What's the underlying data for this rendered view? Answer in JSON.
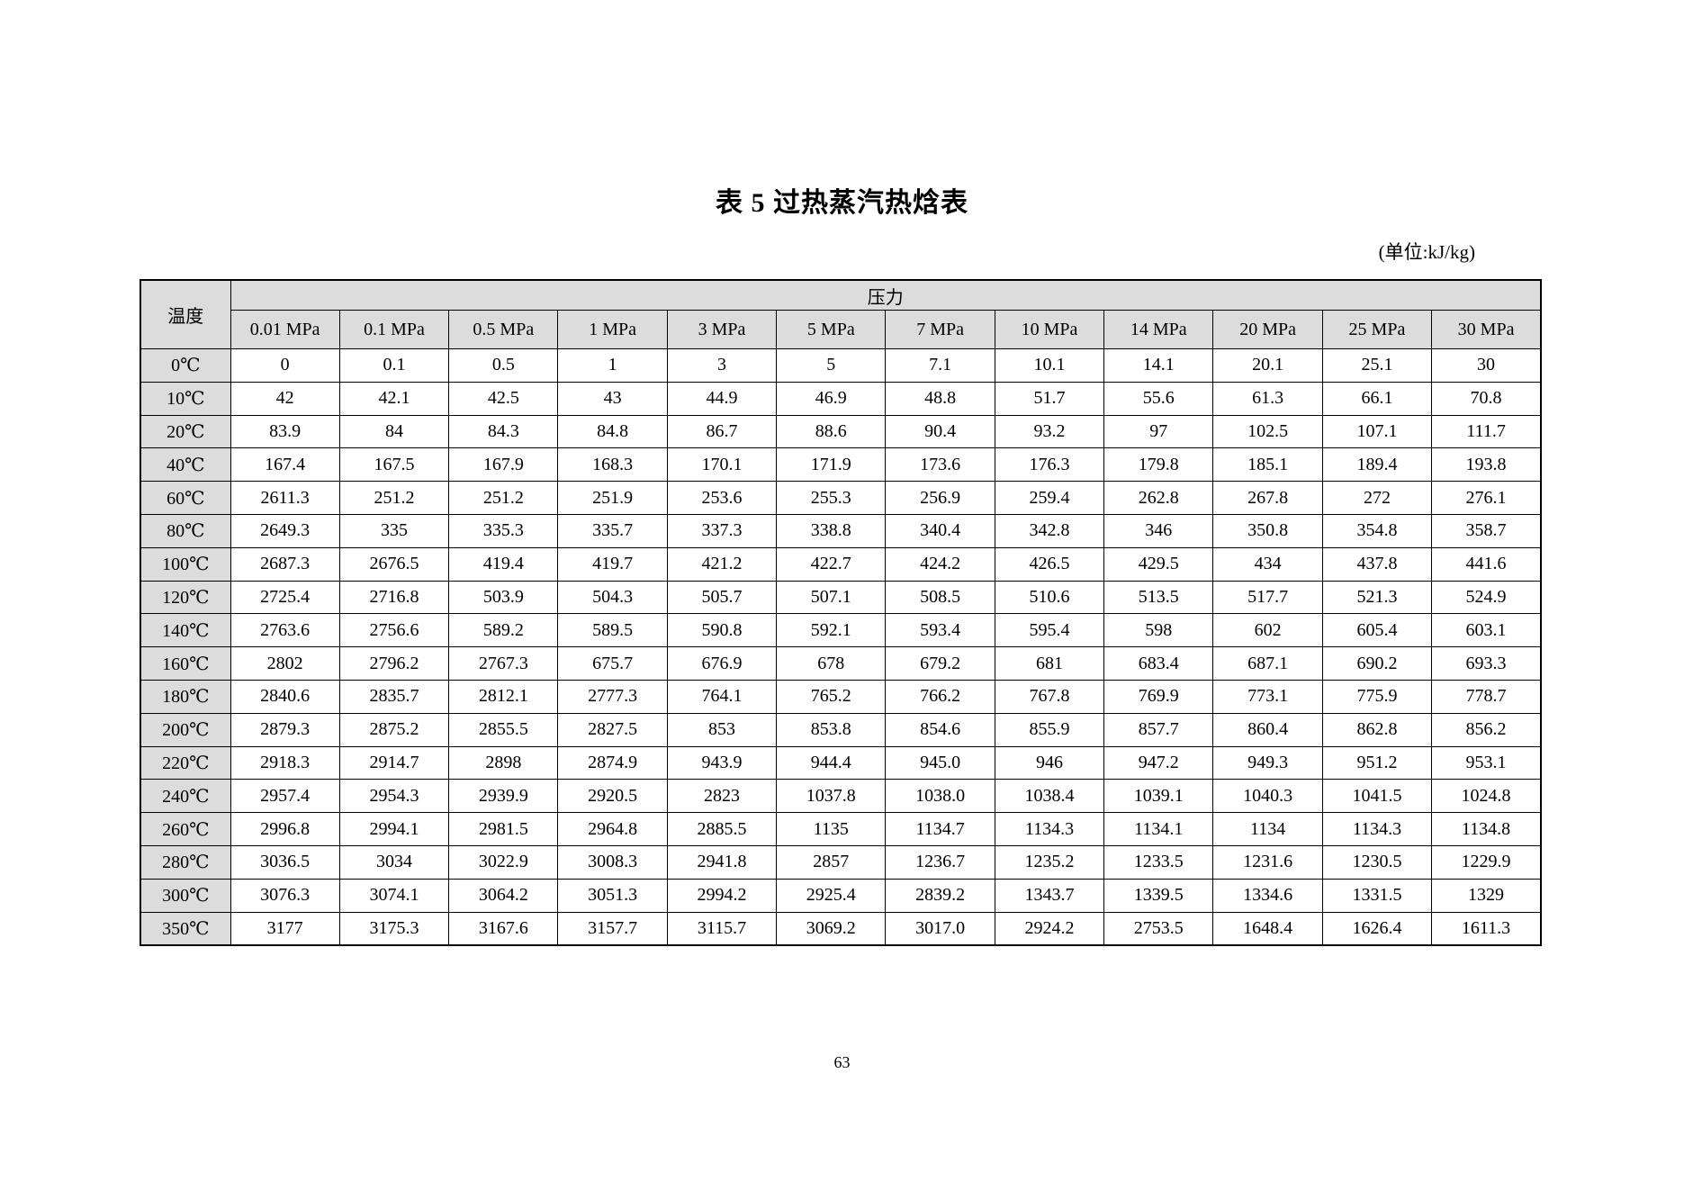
{
  "page": {
    "title": "表 5 过热蒸汽热焓表",
    "unit_note": "(单位:kJ/kg)",
    "page_number": "63"
  },
  "table": {
    "corner_header": "温度",
    "group_header": "压力",
    "header_bg_color": "#dcdcdc",
    "border_color": "#000000",
    "columns": [
      "0.01 MPa",
      "0.1 MPa",
      "0.5 MPa",
      "1 MPa",
      "3 MPa",
      "5 MPa",
      "7 MPa",
      "10 MPa",
      "14 MPa",
      "20 MPa",
      "25 MPa",
      "30 MPa"
    ],
    "rows": [
      {
        "temp": "0℃",
        "values": [
          "0",
          "0.1",
          "0.5",
          "1",
          "3",
          "5",
          "7.1",
          "10.1",
          "14.1",
          "20.1",
          "25.1",
          "30"
        ]
      },
      {
        "temp": "10℃",
        "values": [
          "42",
          "42.1",
          "42.5",
          "43",
          "44.9",
          "46.9",
          "48.8",
          "51.7",
          "55.6",
          "61.3",
          "66.1",
          "70.8"
        ]
      },
      {
        "temp": "20℃",
        "values": [
          "83.9",
          "84",
          "84.3",
          "84.8",
          "86.7",
          "88.6",
          "90.4",
          "93.2",
          "97",
          "102.5",
          "107.1",
          "111.7"
        ]
      },
      {
        "temp": "40℃",
        "values": [
          "167.4",
          "167.5",
          "167.9",
          "168.3",
          "170.1",
          "171.9",
          "173.6",
          "176.3",
          "179.8",
          "185.1",
          "189.4",
          "193.8"
        ]
      },
      {
        "temp": "60℃",
        "values": [
          "2611.3",
          "251.2",
          "251.2",
          "251.9",
          "253.6",
          "255.3",
          "256.9",
          "259.4",
          "262.8",
          "267.8",
          "272",
          "276.1"
        ]
      },
      {
        "temp": "80℃",
        "values": [
          "2649.3",
          "335",
          "335.3",
          "335.7",
          "337.3",
          "338.8",
          "340.4",
          "342.8",
          "346",
          "350.8",
          "354.8",
          "358.7"
        ]
      },
      {
        "temp": "100℃",
        "values": [
          "2687.3",
          "2676.5",
          "419.4",
          "419.7",
          "421.2",
          "422.7",
          "424.2",
          "426.5",
          "429.5",
          "434",
          "437.8",
          "441.6"
        ]
      },
      {
        "temp": "120℃",
        "values": [
          "2725.4",
          "2716.8",
          "503.9",
          "504.3",
          "505.7",
          "507.1",
          "508.5",
          "510.6",
          "513.5",
          "517.7",
          "521.3",
          "524.9"
        ]
      },
      {
        "temp": "140℃",
        "values": [
          "2763.6",
          "2756.6",
          "589.2",
          "589.5",
          "590.8",
          "592.1",
          "593.4",
          "595.4",
          "598",
          "602",
          "605.4",
          "603.1"
        ]
      },
      {
        "temp": "160℃",
        "values": [
          "2802",
          "2796.2",
          "2767.3",
          "675.7",
          "676.9",
          "678",
          "679.2",
          "681",
          "683.4",
          "687.1",
          "690.2",
          "693.3"
        ]
      },
      {
        "temp": "180℃",
        "values": [
          "2840.6",
          "2835.7",
          "2812.1",
          "2777.3",
          "764.1",
          "765.2",
          "766.2",
          "767.8",
          "769.9",
          "773.1",
          "775.9",
          "778.7"
        ]
      },
      {
        "temp": "200℃",
        "values": [
          "2879.3",
          "2875.2",
          "2855.5",
          "2827.5",
          "853",
          "853.8",
          "854.6",
          "855.9",
          "857.7",
          "860.4",
          "862.8",
          "856.2"
        ]
      },
      {
        "temp": "220℃",
        "values": [
          "2918.3",
          "2914.7",
          "2898",
          "2874.9",
          "943.9",
          "944.4",
          "945.0",
          "946",
          "947.2",
          "949.3",
          "951.2",
          "953.1"
        ]
      },
      {
        "temp": "240℃",
        "values": [
          "2957.4",
          "2954.3",
          "2939.9",
          "2920.5",
          "2823",
          "1037.8",
          "1038.0",
          "1038.4",
          "1039.1",
          "1040.3",
          "1041.5",
          "1024.8"
        ]
      },
      {
        "temp": "260℃",
        "values": [
          "2996.8",
          "2994.1",
          "2981.5",
          "2964.8",
          "2885.5",
          "1135",
          "1134.7",
          "1134.3",
          "1134.1",
          "1134",
          "1134.3",
          "1134.8"
        ]
      },
      {
        "temp": "280℃",
        "values": [
          "3036.5",
          "3034",
          "3022.9",
          "3008.3",
          "2941.8",
          "2857",
          "1236.7",
          "1235.2",
          "1233.5",
          "1231.6",
          "1230.5",
          "1229.9"
        ]
      },
      {
        "temp": "300℃",
        "values": [
          "3076.3",
          "3074.1",
          "3064.2",
          "3051.3",
          "2994.2",
          "2925.4",
          "2839.2",
          "1343.7",
          "1339.5",
          "1334.6",
          "1331.5",
          "1329"
        ]
      },
      {
        "temp": "350℃",
        "values": [
          "3177",
          "3175.3",
          "3167.6",
          "3157.7",
          "3115.7",
          "3069.2",
          "3017.0",
          "2924.2",
          "2753.5",
          "1648.4",
          "1626.4",
          "1611.3"
        ]
      }
    ]
  }
}
